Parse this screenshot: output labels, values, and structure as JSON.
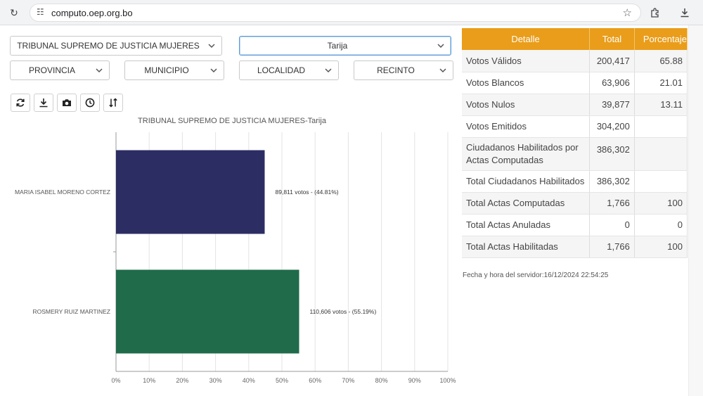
{
  "browser": {
    "url": "computo.oep.org.bo"
  },
  "filters": {
    "election": "TRIBUNAL SUPREMO DE JUSTICIA MUJERES",
    "department": "Tarija",
    "provincia": "PROVINCIA",
    "municipio": "MUNICIPIO",
    "localidad": "LOCALIDAD",
    "recinto": "RECINTO"
  },
  "toolbar": {
    "icons": [
      "refresh-icon",
      "download-icon",
      "camera-icon",
      "clock-icon",
      "sort-icon"
    ]
  },
  "chart_data": {
    "type": "bar",
    "orientation": "horizontal",
    "title": "TRIBUNAL SUPREMO DE JUSTICIA MUJERES-Tarija",
    "categories": [
      "MARIA ISABEL MORENO CORTEZ",
      "ROSMERY RUIZ MARTINEZ"
    ],
    "values": [
      44.81,
      55.19
    ],
    "data_labels": [
      "89,811 votos - (44.81%)",
      "110,606 votos - (55.19%)"
    ],
    "colors": [
      "#2b2d63",
      "#1f6b4a"
    ],
    "xlim": [
      0,
      100
    ],
    "xticks": [
      "0%",
      "10%",
      "20%",
      "30%",
      "40%",
      "50%",
      "60%",
      "70%",
      "80%",
      "90%",
      "100%"
    ],
    "grid": true
  },
  "table": {
    "headers": [
      "Detalle",
      "Total",
      "Porcentaje"
    ],
    "rows": [
      {
        "label": "Votos Válidos",
        "total": "200,417",
        "pct": "65.88"
      },
      {
        "label": "Votos Blancos",
        "total": "63,906",
        "pct": "21.01"
      },
      {
        "label": "Votos Nulos",
        "total": "39,877",
        "pct": "13.11"
      },
      {
        "label": "Votos Emitidos",
        "total": "304,200",
        "pct": ""
      },
      {
        "label": "Ciudadanos Habilitados por Actas Computadas",
        "total": "386,302",
        "pct": ""
      },
      {
        "label": "Total Ciudadanos Habilitados",
        "total": "386,302",
        "pct": ""
      },
      {
        "label": "Total Actas Computadas",
        "total": "1,766",
        "pct": "100"
      },
      {
        "label": "Total Actas Anuladas",
        "total": "0",
        "pct": "0"
      },
      {
        "label": "Total Actas Habilitadas",
        "total": "1,766",
        "pct": "100"
      }
    ]
  },
  "server_time": "Fecha y hora del servidor:16/12/2024 22:54:25",
  "colors": {
    "header_orange": "#e99d1a",
    "bar_navy": "#2b2d63",
    "bar_green": "#1f6b4a"
  }
}
